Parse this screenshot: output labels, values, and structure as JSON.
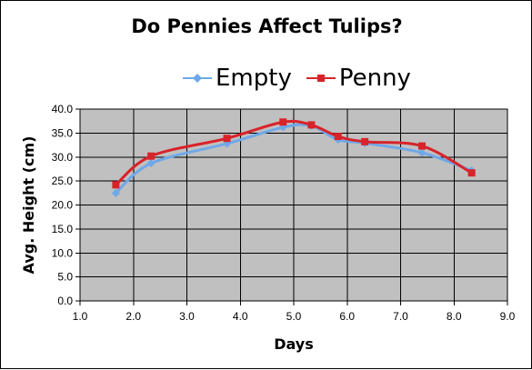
{
  "chart_data": {
    "type": "line",
    "title": "Do Pennies Affect Tulips?",
    "xlabel": "Days",
    "ylabel": "Avg. Height (cm)",
    "xlim": [
      1.0,
      9.0
    ],
    "ylim": [
      0.0,
      40.0
    ],
    "x_ticks": [
      "1.0",
      "2.0",
      "3.0",
      "4.0",
      "5.0",
      "6.0",
      "7.0",
      "8.0",
      "9.0"
    ],
    "y_ticks": [
      "0.0",
      "5.0",
      "10.0",
      "15.0",
      "20.0",
      "25.0",
      "30.0",
      "35.0",
      "40.0"
    ],
    "grid": true,
    "legend": "top",
    "background": "#c0c0c0",
    "series": [
      {
        "name": "Empty",
        "color": "#6fa8e8",
        "marker": "diamond",
        "points": [
          [
            1.67,
            22.5
          ],
          [
            2.33,
            28.7
          ],
          [
            3.75,
            32.8
          ],
          [
            4.8,
            36.2
          ],
          [
            5.33,
            36.5
          ],
          [
            5.83,
            33.6
          ],
          [
            6.33,
            32.9
          ],
          [
            7.4,
            30.9
          ],
          [
            8.33,
            27.2
          ]
        ]
      },
      {
        "name": "Penny",
        "color": "#d8232a",
        "marker": "square",
        "points": [
          [
            1.67,
            24.2
          ],
          [
            2.33,
            30.2
          ],
          [
            3.75,
            33.9
          ],
          [
            4.8,
            37.3
          ],
          [
            5.33,
            36.7
          ],
          [
            5.83,
            34.3
          ],
          [
            6.33,
            33.2
          ],
          [
            7.4,
            32.3
          ],
          [
            8.33,
            26.7
          ]
        ]
      }
    ]
  }
}
